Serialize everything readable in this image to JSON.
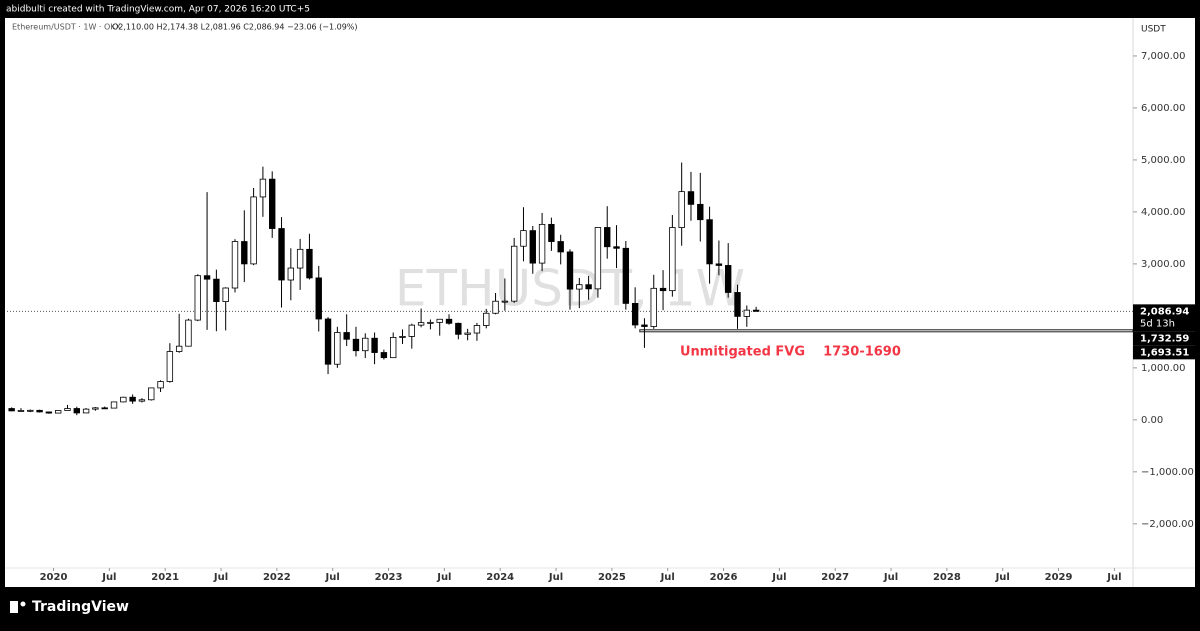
{
  "header": {
    "credit": "abidbulti created with TradingView.com, Apr 07, 2026 16:20 UTC+5"
  },
  "footer": {
    "logo": "TradingView"
  },
  "chart_data": {
    "type": "candlestick",
    "symbol": "Ethereum/USDT · 1W · OKX",
    "ohlc_text": "O2,110.00 H2,174.38 L2,081.96 C2,086.94 −23.06 (−1.09%)",
    "watermark": "ETHUSDT, 1W",
    "y_axis_label": "USDT",
    "up_color": "#ffffff",
    "down_color": "#000000",
    "outline_color": "#000000",
    "x": [
      "2019-08",
      "2019-09",
      "2019-10",
      "2019-11",
      "2019-12",
      "2020-01",
      "2020-02",
      "2020-03",
      "2020-04",
      "2020-05",
      "2020-06",
      "2020-07",
      "2020-08",
      "2020-09",
      "2020-10",
      "2020-11",
      "2020-12",
      "2021-01",
      "2021-02",
      "2021-03",
      "2021-04",
      "2021-05",
      "2021-06",
      "2021-07",
      "2021-08",
      "2021-09",
      "2021-10",
      "2021-11",
      "2021-12",
      "2022-01",
      "2022-02",
      "2022-03",
      "2022-04",
      "2022-05",
      "2022-06",
      "2022-07",
      "2022-08",
      "2022-09",
      "2022-10",
      "2022-11",
      "2022-12",
      "2023-01",
      "2023-02",
      "2023-03",
      "2023-04",
      "2023-05",
      "2023-06",
      "2023-07",
      "2023-08",
      "2023-09",
      "2023-10",
      "2023-11",
      "2023-12",
      "2024-01",
      "2024-02",
      "2024-03",
      "2024-04",
      "2024-05",
      "2024-06",
      "2024-07",
      "2024-08",
      "2024-09",
      "2024-10",
      "2024-11",
      "2024-12",
      "2025-01",
      "2025-02",
      "2025-03",
      "2025-04",
      "2025-05",
      "2025-06",
      "2025-07",
      "2025-08",
      "2025-09",
      "2025-10",
      "2025-11",
      "2025-12",
      "2026-01",
      "2026-02",
      "2026-03",
      "2026-04"
    ],
    "open": [
      218,
      172,
      180,
      183,
      152,
      130,
      180,
      218,
      133,
      206,
      231,
      226,
      345,
      435,
      360,
      386,
      614,
      737,
      1314,
      1417,
      1919,
      2773,
      2706,
      2275,
      2536,
      3430,
      3000,
      4288,
      4630,
      3680,
      2690,
      2920,
      3280,
      2730,
      1940,
      1070,
      1680,
      1550,
      1330,
      1570,
      1295,
      1196,
      1585,
      1605,
      1822,
      1870,
      1875,
      1935,
      1857,
      1645,
      1670,
      1815,
      2050,
      2282,
      2283,
      3340,
      3640,
      3015,
      3760,
      3430,
      3230,
      2515,
      2600,
      2520,
      3700,
      3330,
      3300,
      2240,
      1825,
      1795,
      2530,
      2485,
      3700,
      4390,
      4145,
      3850,
      3000,
      2970,
      2450,
      1990,
      2110
    ],
    "high": [
      240,
      225,
      200,
      195,
      155,
      185,
      288,
      253,
      228,
      246,
      255,
      350,
      445,
      488,
      417,
      622,
      760,
      1475,
      2040,
      1945,
      2800,
      4380,
      2890,
      2550,
      3475,
      4030,
      4460,
      4870,
      4780,
      3900,
      3300,
      3480,
      3580,
      2960,
      1975,
      1790,
      2030,
      1790,
      1665,
      1680,
      1350,
      1680,
      1740,
      1850,
      2140,
      1930,
      1930,
      2030,
      1870,
      1750,
      1865,
      2135,
      2440,
      2720,
      3500,
      4090,
      3730,
      3980,
      3890,
      3560,
      3280,
      2730,
      2770,
      3680,
      4110,
      3745,
      3440,
      2550,
      1955,
      2790,
      2880,
      3940,
      4950,
      4770,
      4750,
      4100,
      3450,
      3400,
      2600,
      2200,
      2174.38
    ],
    "low": [
      165,
      155,
      150,
      140,
      117,
      126,
      176,
      90,
      128,
      175,
      214,
      222,
      335,
      308,
      335,
      370,
      535,
      715,
      1290,
      1430,
      1900,
      1730,
      1705,
      1720,
      2450,
      2650,
      2975,
      3905,
      3500,
      2160,
      2300,
      2500,
      2700,
      1700,
      880,
      1000,
      1420,
      1220,
      1190,
      1070,
      1160,
      1190,
      1460,
      1370,
      1780,
      1740,
      1620,
      1830,
      1550,
      1530,
      1520,
      1760,
      2030,
      2100,
      2250,
      3050,
      2810,
      2860,
      3250,
      2990,
      2120,
      2150,
      2310,
      2350,
      3100,
      2920,
      2120,
      1760,
      1385,
      1750,
      2110,
      2370,
      3350,
      3830,
      3430,
      2620,
      2780,
      2350,
      1750,
      1790,
      2081.96
    ],
    "close": [
      172,
      180,
      183,
      152,
      130,
      180,
      218,
      133,
      206,
      231,
      226,
      345,
      435,
      360,
      386,
      614,
      737,
      1314,
      1417,
      1919,
      2773,
      2706,
      2275,
      2536,
      3430,
      3000,
      4288,
      4630,
      3680,
      2690,
      2920,
      3280,
      2730,
      1940,
      1070,
      1680,
      1550,
      1330,
      1570,
      1295,
      1196,
      1585,
      1605,
      1822,
      1870,
      1875,
      1935,
      1857,
      1645,
      1670,
      1815,
      2050,
      2282,
      2283,
      3340,
      3640,
      3015,
      3760,
      3430,
      3230,
      2515,
      2600,
      2520,
      3700,
      3330,
      3300,
      2240,
      1825,
      1795,
      2530,
      2485,
      3700,
      4390,
      4145,
      3850,
      3000,
      2970,
      2450,
      1990,
      2110,
      2086.94
    ],
    "xlim": [
      "2019-08",
      "2029-09"
    ],
    "xticks": [
      {
        "value": "2020-01",
        "label": "2020"
      },
      {
        "value": "2020-07",
        "label": "Jul"
      },
      {
        "value": "2021-01",
        "label": "2021"
      },
      {
        "value": "2021-07",
        "label": "Jul"
      },
      {
        "value": "2022-01",
        "label": "2022"
      },
      {
        "value": "2022-07",
        "label": "Jul"
      },
      {
        "value": "2023-01",
        "label": "2023"
      },
      {
        "value": "2023-07",
        "label": "Jul"
      },
      {
        "value": "2024-01",
        "label": "2024"
      },
      {
        "value": "2024-07",
        "label": "Jul"
      },
      {
        "value": "2025-01",
        "label": "2025"
      },
      {
        "value": "2025-07",
        "label": "Jul"
      },
      {
        "value": "2026-01",
        "label": "2026"
      },
      {
        "value": "2026-07",
        "label": "Jul"
      },
      {
        "value": "2027-01",
        "label": "2027"
      },
      {
        "value": "2027-07",
        "label": "Jul"
      },
      {
        "value": "2028-01",
        "label": "2028"
      },
      {
        "value": "2028-07",
        "label": "Jul"
      },
      {
        "value": "2029-01",
        "label": "2029"
      },
      {
        "value": "2029-07",
        "label": "Jul"
      }
    ],
    "ylim": [
      -2850,
      7730
    ],
    "yticks": [
      {
        "value": -2000,
        "label": "−2,000.00"
      },
      {
        "value": -1000,
        "label": "−1,000.00"
      },
      {
        "value": 0,
        "label": "0.00"
      },
      {
        "value": 1000,
        "label": "1,000.00"
      },
      {
        "value": 2000,
        "label": "2,000.00"
      },
      {
        "value": 3000,
        "label": "3,000.00"
      },
      {
        "value": 4000,
        "label": "4,000.00"
      },
      {
        "value": 5000,
        "label": "5,000.00"
      },
      {
        "value": 6000,
        "label": "6,000.00"
      },
      {
        "value": 7000,
        "label": "7,000.00"
      }
    ],
    "last_price": {
      "value": 2086.94,
      "label": "2,086.94",
      "countdown": "5d 13h"
    },
    "fvg": {
      "start": "2025-04",
      "top": 1732.59,
      "top_label": "1,732.59",
      "bottom": 1693.51,
      "bottom_label": "1,693.51",
      "annotation": "Unmitigated FVG    1730-1690",
      "color": "#f23645"
    }
  }
}
